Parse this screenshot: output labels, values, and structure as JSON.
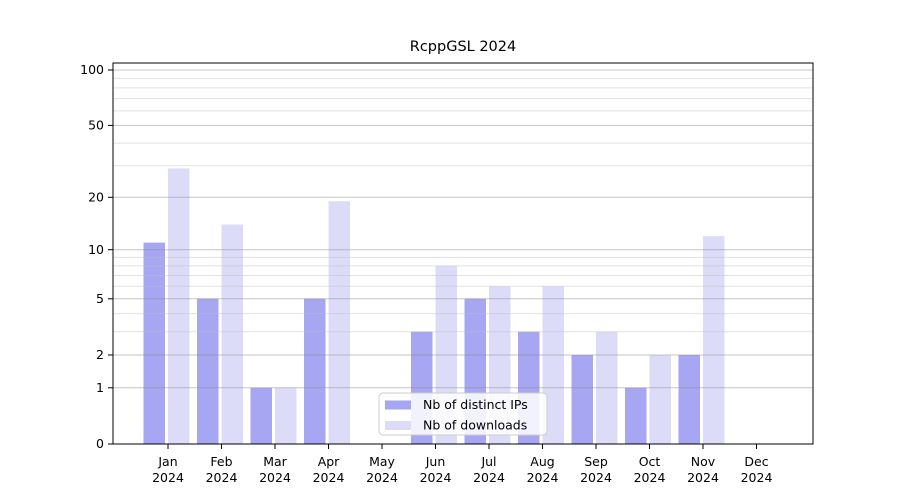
{
  "title": "RcppGSL 2024",
  "chart_data": {
    "type": "bar",
    "title": "RcppGSL 2024",
    "categories": [
      "Jan",
      "Feb",
      "Mar",
      "Apr",
      "May",
      "Jun",
      "Jul",
      "Aug",
      "Sep",
      "Oct",
      "Nov",
      "Dec"
    ],
    "category_year": "2024",
    "series": [
      {
        "name": "Nb of distinct IPs",
        "color": "#a6a6f2",
        "values": [
          11,
          5,
          1,
          5,
          0,
          3,
          5,
          3,
          2,
          1,
          2,
          0
        ]
      },
      {
        "name": "Nb of downloads",
        "color": "#dcdcf9",
        "values": [
          29,
          14,
          1,
          19,
          0,
          8,
          6,
          6,
          3,
          2,
          12,
          0
        ]
      }
    ],
    "yscale": "log1p",
    "ylim": [
      0,
      100
    ],
    "yticks": [
      0,
      1,
      2,
      5,
      10,
      20,
      50,
      100
    ],
    "yminorticks": [
      3,
      4,
      6,
      7,
      8,
      9,
      30,
      40,
      60,
      70,
      80,
      90
    ],
    "grid": true,
    "legend_position": "lower-center"
  },
  "colors": {
    "background": "#ffffff",
    "axis": "#000000",
    "grid_major": "#8c8c8c",
    "grid_minor": "#bfbfbf",
    "legend_border": "#cccccc",
    "legend_bg": "#ffffff",
    "text": "#000000"
  }
}
